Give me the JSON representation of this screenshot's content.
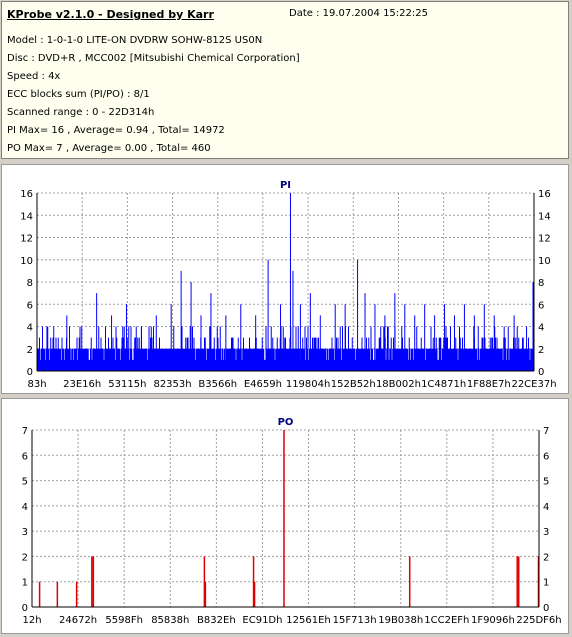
{
  "header": {
    "title": "KProbe v2.1.0 - Designed by Karr",
    "date": "Date : 19.07.2004 15:22:25",
    "lines": [
      "Model : 1-0-1-0 LITE-ON DVDRW SOHW-812S  US0N",
      "Disc : DVD+R , MCC002 [Mitsubishi Chemical Corporation]",
      "Speed : 4x",
      "ECC blocks sum (PI/PO) : 8/1",
      "Scanned range : 0 - 22D314h",
      "PI Max= 16 , Average= 0.94 , Total= 14972",
      "PO Max= 7 , Average= 0.00 , Total= 460"
    ]
  },
  "colors": {
    "pi": "#0000ff",
    "po": "#e00000",
    "grid": "#a0a0a0",
    "title": "#000080"
  },
  "chart_data": [
    {
      "type": "bar",
      "title": "PI",
      "ylim": [
        0,
        16
      ],
      "yticks": [
        0,
        2,
        4,
        6,
        8,
        10,
        12,
        14,
        16
      ],
      "xticks": [
        "83h",
        "23E16h",
        "53115h",
        "82353h",
        "B3566h",
        "E4659h",
        "119804h",
        "152B52h",
        "18B002h",
        "1C4871h",
        "1F88E7h",
        "22CE37h"
      ],
      "baseline": 2,
      "spikes": [
        {
          "x": 0.02,
          "y": 4
        },
        {
          "x": 0.06,
          "y": 5
        },
        {
          "x": 0.09,
          "y": 4
        },
        {
          "x": 0.12,
          "y": 7
        },
        {
          "x": 0.15,
          "y": 5
        },
        {
          "x": 0.18,
          "y": 6
        },
        {
          "x": 0.21,
          "y": 4
        },
        {
          "x": 0.24,
          "y": 5
        },
        {
          "x": 0.27,
          "y": 6
        },
        {
          "x": 0.29,
          "y": 9
        },
        {
          "x": 0.31,
          "y": 8
        },
        {
          "x": 0.33,
          "y": 5
        },
        {
          "x": 0.35,
          "y": 7
        },
        {
          "x": 0.38,
          "y": 5
        },
        {
          "x": 0.41,
          "y": 6
        },
        {
          "x": 0.44,
          "y": 5
        },
        {
          "x": 0.465,
          "y": 10
        },
        {
          "x": 0.49,
          "y": 6
        },
        {
          "x": 0.51,
          "y": 16
        },
        {
          "x": 0.515,
          "y": 9
        },
        {
          "x": 0.53,
          "y": 6
        },
        {
          "x": 0.55,
          "y": 7
        },
        {
          "x": 0.57,
          "y": 5
        },
        {
          "x": 0.6,
          "y": 6
        },
        {
          "x": 0.62,
          "y": 6
        },
        {
          "x": 0.645,
          "y": 10
        },
        {
          "x": 0.66,
          "y": 7
        },
        {
          "x": 0.68,
          "y": 6
        },
        {
          "x": 0.7,
          "y": 5
        },
        {
          "x": 0.72,
          "y": 7
        },
        {
          "x": 0.74,
          "y": 6
        },
        {
          "x": 0.76,
          "y": 5
        },
        {
          "x": 0.78,
          "y": 6
        },
        {
          "x": 0.8,
          "y": 5
        },
        {
          "x": 0.82,
          "y": 6
        },
        {
          "x": 0.84,
          "y": 5
        },
        {
          "x": 0.86,
          "y": 6
        },
        {
          "x": 0.88,
          "y": 5
        },
        {
          "x": 0.9,
          "y": 6
        },
        {
          "x": 0.92,
          "y": 5
        },
        {
          "x": 0.94,
          "y": 4
        },
        {
          "x": 0.96,
          "y": 5
        },
        {
          "x": 0.985,
          "y": 4
        },
        {
          "x": 0.998,
          "y": 8
        }
      ]
    },
    {
      "type": "bar",
      "title": "PO",
      "ylim": [
        0,
        7
      ],
      "yticks": [
        0,
        1,
        2,
        3,
        4,
        5,
        6,
        7
      ],
      "xticks": [
        "12h",
        "24672h",
        "5598Fh",
        "85838h",
        "B832Eh",
        "EC91Dh",
        "12561Eh",
        "15F713h",
        "19B038h",
        "1CC2EFh",
        "1F9096h",
        "225DF6h"
      ],
      "spikes": [
        {
          "x": 0.015,
          "y": 1
        },
        {
          "x": 0.05,
          "y": 1
        },
        {
          "x": 0.088,
          "y": 1
        },
        {
          "x": 0.118,
          "y": 2
        },
        {
          "x": 0.121,
          "y": 2
        },
        {
          "x": 0.34,
          "y": 2
        },
        {
          "x": 0.342,
          "y": 1
        },
        {
          "x": 0.437,
          "y": 2
        },
        {
          "x": 0.439,
          "y": 1
        },
        {
          "x": 0.497,
          "y": 7
        },
        {
          "x": 0.745,
          "y": 2
        },
        {
          "x": 0.957,
          "y": 2
        },
        {
          "x": 0.96,
          "y": 2
        },
        {
          "x": 0.999,
          "y": 2
        }
      ]
    }
  ]
}
